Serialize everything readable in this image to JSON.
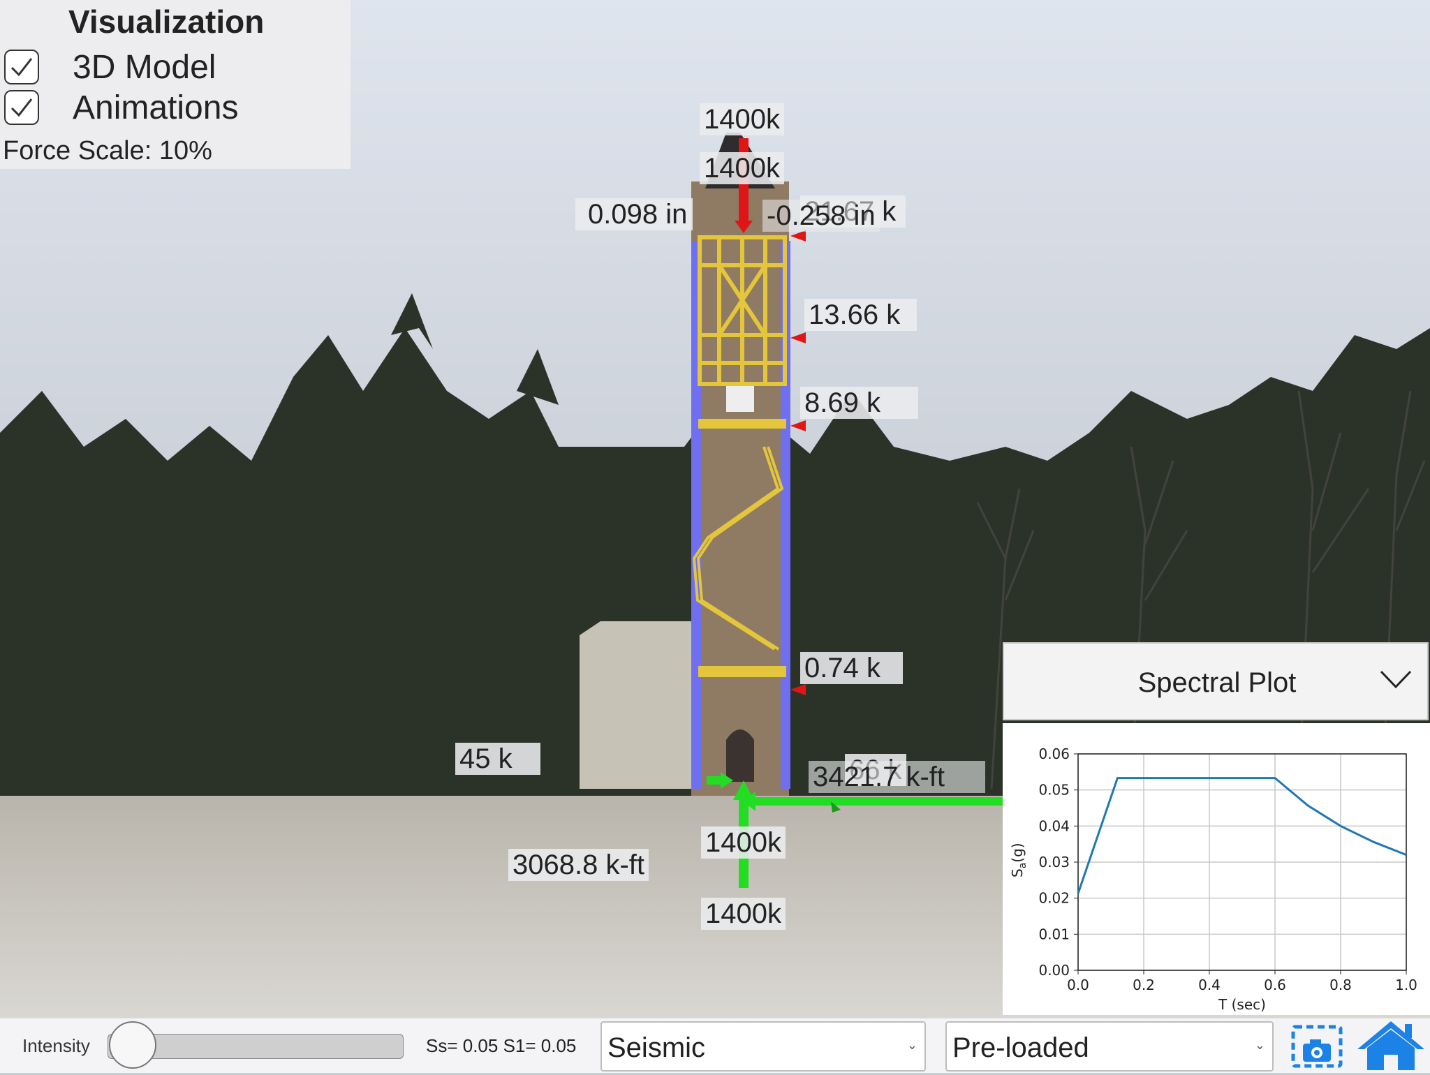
{
  "visualization_panel": {
    "title": "Visualization",
    "options": [
      {
        "label": "3D Model",
        "checked": true
      },
      {
        "label": "Animations",
        "checked": true
      }
    ],
    "force_scale": "Force Scale: 10%"
  },
  "overlay_labels": {
    "top_force_1": "1400k",
    "top_force_2": "1400k",
    "disp_left": "0.098 in",
    "disp_right": "-0.258 in",
    "lateral_top": "21.67 k",
    "lateral_2": "13.66 k",
    "lateral_3": "8.69 k",
    "lateral_4": "0.74 k",
    "base_shear_left": "45 k",
    "base_shear_right": "66 k",
    "moment_right": "3421.7 k-ft",
    "moment_left": "3068.8 k-ft",
    "base_axial_1": "1400k",
    "base_axial_2": "1400k"
  },
  "spectral": {
    "title": "Spectral Plot",
    "chevron_icon": "chevron-down-icon"
  },
  "chart_data": {
    "type": "line",
    "x": [
      0.0,
      0.12,
      0.6,
      0.7,
      0.8,
      0.9,
      1.0
    ],
    "series": [
      {
        "values": [
          0.0213,
          0.0533,
          0.0533,
          0.0457,
          0.04,
          0.0356,
          0.032
        ],
        "color": "#1f77b4"
      }
    ],
    "xlabel": "T (sec)",
    "ylabel": "S",
    "ylabel_sub": "a",
    "ylabel_suffix": "(g)",
    "xlim": [
      0.0,
      1.0
    ],
    "ylim": [
      0.0,
      0.06
    ],
    "xticks": [
      "0.0",
      "0.2",
      "0.4",
      "0.6",
      "0.8",
      "1.0"
    ],
    "yticks": [
      "0.00",
      "0.01",
      "0.02",
      "0.03",
      "0.04",
      "0.05",
      "0.06"
    ],
    "grid": true
  },
  "bottom_bar": {
    "intensity_label": "Intensity",
    "intensity_value": 0.0,
    "ss_text": "Ss= 0.05 S1= 0.05",
    "load_type": "Seismic",
    "mode": "Pre-loaded",
    "caret": "⌄"
  },
  "colors": {
    "wall_blue": "#6f6ff0",
    "frame_yellow": "#e3c63c",
    "force_red": "#e01616",
    "force_green": "#22dd22",
    "icon_blue": "#1c82e6"
  }
}
